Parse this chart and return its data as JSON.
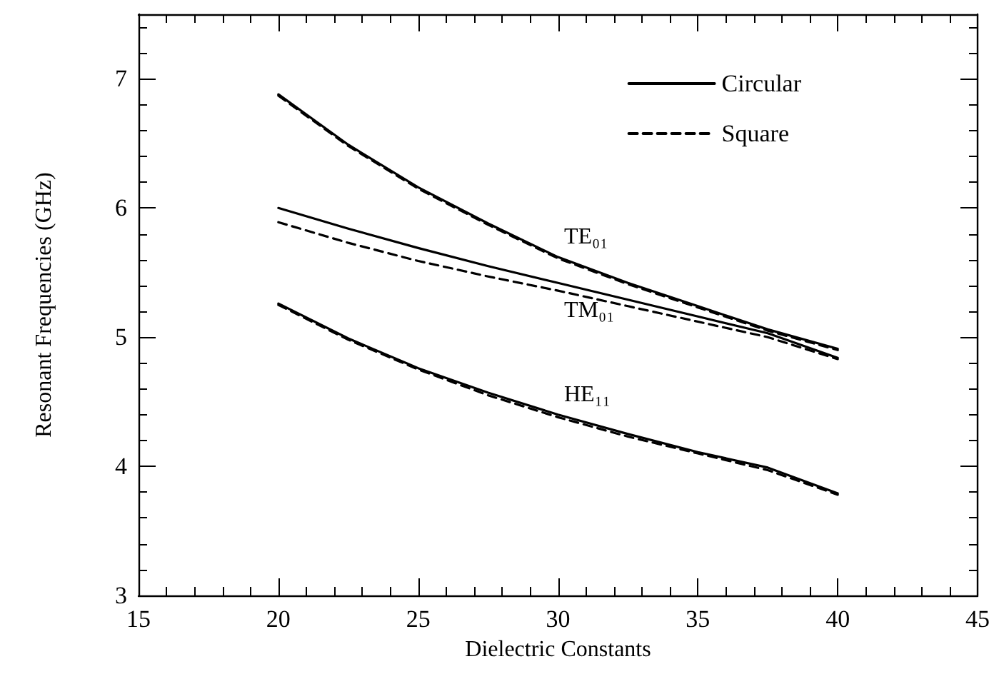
{
  "chart_data": {
    "type": "line",
    "xlabel": "Dielectric Constants",
    "ylabel": "Resonant Frequencies (GHz)",
    "x": [
      20,
      22.5,
      25,
      27.5,
      30,
      32.5,
      35,
      37.5,
      40
    ],
    "series": [
      {
        "name": "Circular",
        "color": "#000000",
        "line_style": "solid",
        "values": [
          6.88,
          6.49,
          6.16,
          5.88,
          5.62,
          5.42,
          5.24,
          5.06,
          4.91
        ]
      },
      {
        "name": "Square",
        "color": "#000000",
        "line_style": "dashed",
        "values": [
          6.87,
          6.48,
          6.15,
          5.87,
          5.61,
          5.41,
          5.23,
          5.05,
          4.9
        ]
      },
      {
        "color": "#000000",
        "line_style": "solid",
        "values": [
          6.0,
          5.84,
          5.69,
          5.55,
          5.42,
          5.29,
          5.16,
          5.03,
          4.84
        ]
      },
      {
        "color": "#000000",
        "line_style": "dashed",
        "values": [
          5.89,
          5.73,
          5.59,
          5.47,
          5.36,
          5.24,
          5.12,
          5.0,
          4.83
        ]
      },
      {
        "color": "#000000",
        "line_style": "solid",
        "values": [
          5.26,
          4.99,
          4.76,
          4.57,
          4.4,
          4.25,
          4.11,
          3.99,
          3.79
        ]
      },
      {
        "color": "#000000",
        "line_style": "dashed",
        "values": [
          5.25,
          4.98,
          4.75,
          4.55,
          4.38,
          4.23,
          4.1,
          3.97,
          3.78
        ]
      }
    ],
    "xlim": [
      15,
      45
    ],
    "xticks": [
      15,
      20,
      25,
      30,
      35,
      40,
      45
    ],
    "ylim": [
      3,
      7.5
    ],
    "yticks": [
      3,
      4,
      5,
      6,
      7
    ],
    "annotations": [
      "TE₀₁",
      "TM₀₁",
      "HE₁₁"
    ],
    "legend": "top right",
    "grid": false,
    "marker": "none"
  }
}
